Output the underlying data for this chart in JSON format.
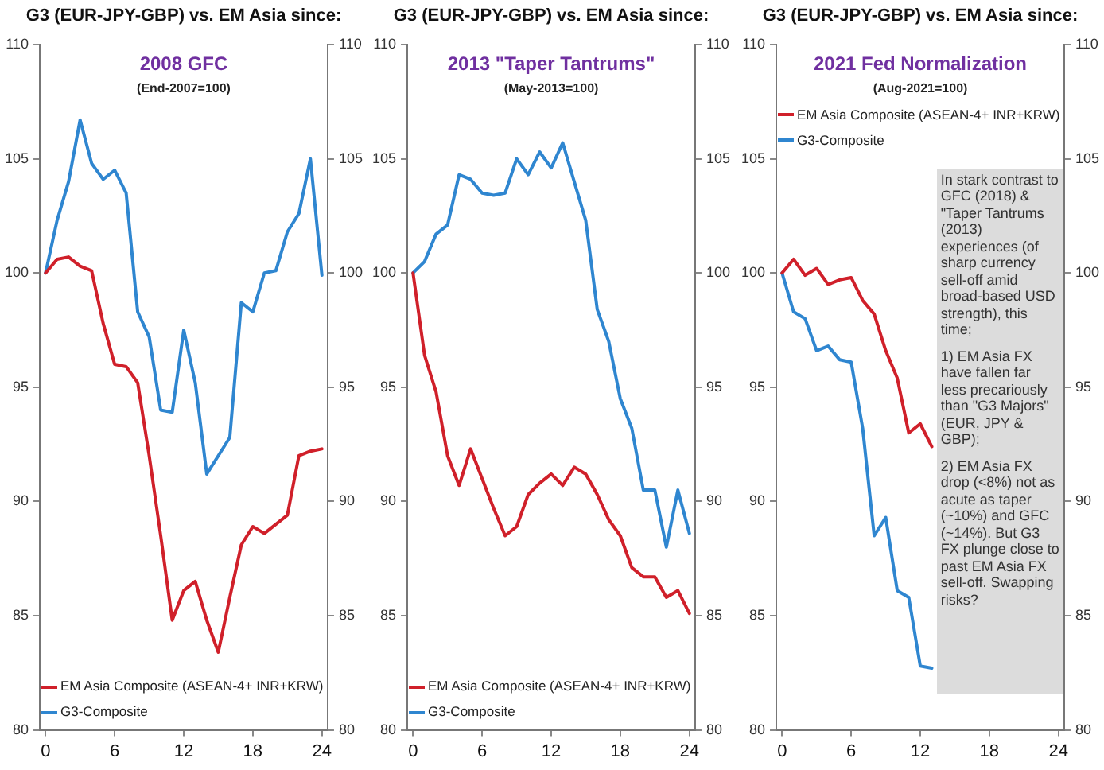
{
  "chart_data": [
    {
      "type": "line",
      "title": "G3 (EUR-JPY-GBP) vs. EM Asia since:",
      "subtitle": "2008 GFC",
      "annotations": [
        "(End-2007=100)"
      ],
      "x": [
        0,
        1,
        2,
        3,
        4,
        5,
        6,
        7,
        8,
        9,
        10,
        11,
        12,
        13,
        14,
        15,
        16,
        17,
        18,
        19,
        20,
        21,
        22,
        23,
        24
      ],
      "series": [
        {
          "name": "EM Asia Composite (ASEAN-4+ INR+KRW)",
          "color": "#d0202a",
          "values": [
            100,
            100.6,
            100.7,
            100.3,
            100.1,
            97.8,
            96.0,
            95.9,
            95.2,
            92.0,
            88.5,
            84.8,
            86.1,
            86.5,
            84.8,
            83.4,
            85.8,
            88.1,
            88.9,
            88.6,
            89.0,
            89.4,
            92.0,
            92.2,
            92.3
          ]
        },
        {
          "name": "G3-Composite",
          "color": "#2f86d0",
          "values": [
            100,
            102.3,
            104.0,
            106.7,
            104.8,
            104.1,
            104.5,
            103.5,
            98.3,
            97.2,
            94.0,
            93.9,
            97.5,
            95.2,
            91.2,
            92.0,
            92.8,
            98.7,
            98.3,
            100.0,
            100.1,
            101.8,
            102.6,
            105.0,
            99.9
          ]
        }
      ],
      "xlim": [
        -0.5,
        24.5
      ],
      "xticks": [
        0,
        6,
        12,
        18,
        24
      ],
      "ylim": [
        80,
        110
      ],
      "yticks": [
        80,
        85,
        90,
        95,
        100,
        105,
        110
      ],
      "y2lim": [
        80,
        110
      ],
      "y2ticks": [
        80,
        85,
        90,
        95,
        100,
        105,
        110
      ],
      "grid": false,
      "legend": "bottom left",
      "marker": "none",
      "line_style": "solid"
    },
    {
      "type": "line",
      "title": "G3 (EUR-JPY-GBP) vs. EM Asia since:",
      "subtitle": "2013 \"Taper Tantrums\"",
      "annotations": [
        "(May-2013=100)"
      ],
      "x": [
        0,
        1,
        2,
        3,
        4,
        5,
        6,
        7,
        8,
        9,
        10,
        11,
        12,
        13,
        14,
        15,
        16,
        17,
        18,
        19,
        20,
        21,
        22,
        23,
        24
      ],
      "series": [
        {
          "name": "EM Asia Composite (ASEAN-4+ INR+KRW)",
          "color": "#d0202a",
          "values": [
            100,
            96.4,
            94.8,
            92.0,
            90.7,
            92.3,
            91.0,
            89.7,
            88.5,
            88.9,
            90.3,
            90.8,
            91.2,
            90.7,
            91.5,
            91.2,
            90.3,
            89.2,
            88.5,
            87.1,
            86.7,
            86.7,
            85.8,
            86.1,
            85.1
          ]
        },
        {
          "name": "G3-Composite",
          "color": "#2f86d0",
          "values": [
            100,
            100.5,
            101.7,
            102.1,
            104.3,
            104.1,
            103.5,
            103.4,
            103.5,
            105.0,
            104.3,
            105.3,
            104.6,
            105.7,
            104.0,
            102.3,
            98.4,
            97.0,
            94.5,
            93.2,
            90.5,
            90.5,
            88.0,
            90.5,
            88.6
          ]
        }
      ],
      "xlim": [
        -0.5,
        24.5
      ],
      "xticks": [
        0,
        6,
        12,
        18,
        24
      ],
      "ylim": [
        80,
        110
      ],
      "yticks": [
        80,
        85,
        90,
        95,
        100,
        105,
        110
      ],
      "y2lim": [
        80,
        110
      ],
      "y2ticks": [
        80,
        85,
        90,
        95,
        100,
        105,
        110
      ],
      "grid": false,
      "legend": "bottom left",
      "marker": "none",
      "line_style": "solid"
    },
    {
      "type": "line",
      "title": "G3 (EUR-JPY-GBP) vs. EM Asia since:",
      "subtitle": "2021 Fed Normalization",
      "annotations": [
        "(Aug-2021=100)",
        "In stark contrast to GFC (2018) & \"Taper Tantrums (2013) experiences (of sharp currency sell-off amid broad-based USD strength), this time;",
        "1) EM Asia FX have fallen far less precariously than \"G3 Majors\" (EUR, JPY & GBP);",
        "2) EM Asia FX drop (<8%) not as acute as taper (~10%) and GFC (~14%). But G3 FX plunge close to past EM Asia FX sell-off. Swapping risks?"
      ],
      "x": [
        0,
        1,
        2,
        3,
        4,
        5,
        6,
        7,
        8,
        9,
        10,
        11,
        12,
        13
      ],
      "series": [
        {
          "name": "EM Asia Composite (ASEAN-4+ INR+KRW)",
          "color": "#d0202a",
          "values": [
            100,
            100.6,
            99.9,
            100.2,
            99.5,
            99.7,
            99.8,
            98.8,
            98.2,
            96.6,
            95.4,
            93.0,
            93.4,
            92.4
          ]
        },
        {
          "name": "G3-Composite",
          "color": "#2f86d0",
          "values": [
            100,
            98.3,
            98.0,
            96.6,
            96.8,
            96.2,
            96.1,
            93.2,
            88.5,
            89.3,
            86.1,
            85.8,
            82.8,
            82.7
          ]
        }
      ],
      "xlim": [
        -0.5,
        24.5
      ],
      "xticks": [
        0,
        6,
        12,
        18,
        24
      ],
      "ylim": [
        80,
        110
      ],
      "yticks": [
        80,
        85,
        90,
        95,
        100,
        105,
        110
      ],
      "y2lim": [
        80,
        110
      ],
      "y2ticks": [
        80,
        85,
        90,
        95,
        100,
        105,
        110
      ],
      "grid": false,
      "legend": "top left",
      "marker": "none",
      "line_style": "solid"
    }
  ]
}
